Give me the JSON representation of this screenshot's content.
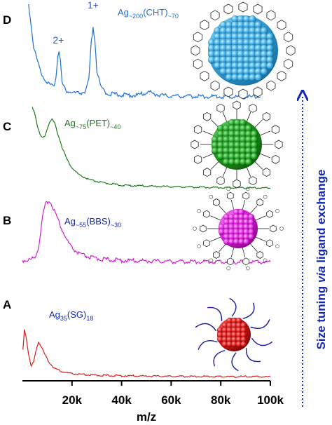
{
  "chart_data": {
    "type": "line",
    "xlabel": "m/z",
    "ylabel": "",
    "xlim": [
      0,
      100000
    ],
    "x_tick_values": [
      20000,
      40000,
      60000,
      80000,
      100000
    ],
    "x_tick_labels": [
      "20k",
      "40k",
      "60k",
      "80k",
      "100k"
    ],
    "side_annotation": {
      "pre": "Size tuning ",
      "italic": "via",
      "post": " ligand exchange"
    },
    "series": [
      {
        "panel": "A",
        "label_main": "Ag",
        "label_sub1": "35",
        "label_mid": "(SG)",
        "label_sub2": "18",
        "color": "#d42020",
        "points": [
          [
            200,
            0.55
          ],
          [
            800,
            0.95
          ],
          [
            1500,
            0.8
          ],
          [
            2500,
            0.45
          ],
          [
            3500,
            0.22
          ],
          [
            4500,
            0.3
          ],
          [
            5500,
            0.55
          ],
          [
            6500,
            0.7
          ],
          [
            7500,
            0.62
          ],
          [
            9000,
            0.45
          ],
          [
            11000,
            0.28
          ],
          [
            13000,
            0.18
          ],
          [
            16000,
            0.11
          ],
          [
            20000,
            0.07
          ],
          [
            25000,
            0.05
          ],
          [
            30000,
            0.04
          ],
          [
            40000,
            0.03
          ],
          [
            60000,
            0.02
          ],
          [
            80000,
            0.015
          ],
          [
            100000,
            0.012
          ]
        ]
      },
      {
        "panel": "B",
        "label_main": "Ag",
        "label_sub1": "~55",
        "label_mid": "(BBS)",
        "label_sub2": "~30",
        "color": "#d21ed2",
        "points": [
          [
            0,
            0.05
          ],
          [
            3000,
            0.06
          ],
          [
            5000,
            0.1
          ],
          [
            6500,
            0.25
          ],
          [
            7500,
            0.55
          ],
          [
            8500,
            0.8
          ],
          [
            9500,
            0.93
          ],
          [
            10500,
            0.98
          ],
          [
            11500,
            0.94
          ],
          [
            12500,
            0.86
          ],
          [
            14000,
            0.72
          ],
          [
            16000,
            0.52
          ],
          [
            18000,
            0.36
          ],
          [
            20000,
            0.24
          ],
          [
            23000,
            0.15
          ],
          [
            27000,
            0.1
          ],
          [
            32000,
            0.07
          ],
          [
            40000,
            0.05
          ],
          [
            60000,
            0.035
          ],
          [
            80000,
            0.03
          ],
          [
            100000,
            0.025
          ]
        ]
      },
      {
        "panel": "C",
        "label_main": "Ag",
        "label_sub1": "~75",
        "label_mid": "(PET)",
        "label_sub2": "~40",
        "color": "#1e7a1e",
        "points": [
          [
            4000,
            0.92
          ],
          [
            5000,
            0.85
          ],
          [
            6000,
            0.72
          ],
          [
            7000,
            0.62
          ],
          [
            8000,
            0.58
          ],
          [
            9000,
            0.6
          ],
          [
            10000,
            0.68
          ],
          [
            11000,
            0.76
          ],
          [
            12000,
            0.78
          ],
          [
            13000,
            0.74
          ],
          [
            14000,
            0.65
          ],
          [
            16000,
            0.48
          ],
          [
            18000,
            0.34
          ],
          [
            20000,
            0.25
          ],
          [
            23000,
            0.17
          ],
          [
            27000,
            0.12
          ],
          [
            32000,
            0.09
          ],
          [
            40000,
            0.06
          ],
          [
            60000,
            0.045
          ],
          [
            80000,
            0.035
          ],
          [
            100000,
            0.03
          ]
        ]
      },
      {
        "panel": "D",
        "label_main": "Ag",
        "label_sub1": "~200",
        "label_mid": "(CHT)",
        "label_sub2": "~70",
        "color": "#1e6fd6",
        "peak_labels": [
          {
            "text": "2+",
            "x": 14500
          },
          {
            "text": "1+",
            "x": 28500
          }
        ],
        "points": [
          [
            2500,
            1.0
          ],
          [
            3500,
            0.78
          ],
          [
            4500,
            0.55
          ],
          [
            5500,
            0.45
          ],
          [
            6500,
            0.36
          ],
          [
            7500,
            0.28
          ],
          [
            9000,
            0.2
          ],
          [
            11000,
            0.14
          ],
          [
            12500,
            0.12
          ],
          [
            13500,
            0.22
          ],
          [
            14300,
            0.45
          ],
          [
            14800,
            0.52
          ],
          [
            15300,
            0.4
          ],
          [
            16000,
            0.16
          ],
          [
            17500,
            0.08
          ],
          [
            20000,
            0.06
          ],
          [
            23000,
            0.05
          ],
          [
            25500,
            0.07
          ],
          [
            26800,
            0.2
          ],
          [
            27800,
            0.6
          ],
          [
            28500,
            0.76
          ],
          [
            29200,
            0.62
          ],
          [
            30000,
            0.3
          ],
          [
            31500,
            0.12
          ],
          [
            34000,
            0.05
          ],
          [
            40000,
            0.035
          ],
          [
            46000,
            0.03
          ],
          [
            49000,
            0.05
          ],
          [
            51000,
            0.07
          ],
          [
            53000,
            0.045
          ],
          [
            58000,
            0.025
          ],
          [
            70000,
            0.02
          ],
          [
            85000,
            0.015
          ],
          [
            96000,
            0.015
          ]
        ]
      }
    ]
  }
}
